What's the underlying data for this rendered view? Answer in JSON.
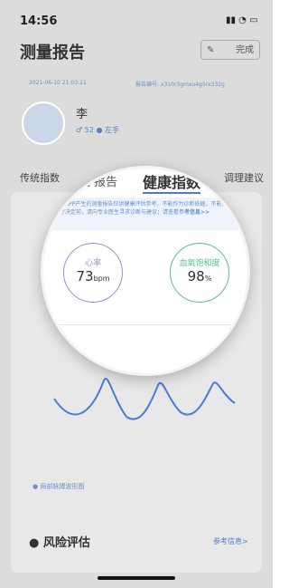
{
  "status_bar": {
    "time": "14:56"
  },
  "header": {
    "title": "测量报告",
    "done": "完成"
  },
  "info": {
    "date": "2021-06-10 21:03:11",
    "report_no": "报告编号: x310r3gmxu4g5rx332g"
  },
  "user": {
    "name": "李",
    "age": "52",
    "hand": "左手"
  },
  "tabs": [
    "传统指数",
    "理疗报告",
    "健康指数",
    "调理建议"
  ],
  "notice": {
    "text": "注：APP产生的测量报告仅供健康评估参考，不能作为诊断依据，不能作为医疗决定前，请向专业医生寻求诊断与建议；请查看参",
    "link": "考信息>>"
  },
  "metrics": [
    {
      "label": "心率",
      "value": "73",
      "unit": "bpm"
    },
    {
      "label": "血氧饱和度",
      "value": "98",
      "unit": "%"
    }
  ],
  "waveform": {
    "label": "局部脉搏波形图"
  },
  "risk": {
    "title": "风险评估",
    "link": "参考信息>"
  }
}
